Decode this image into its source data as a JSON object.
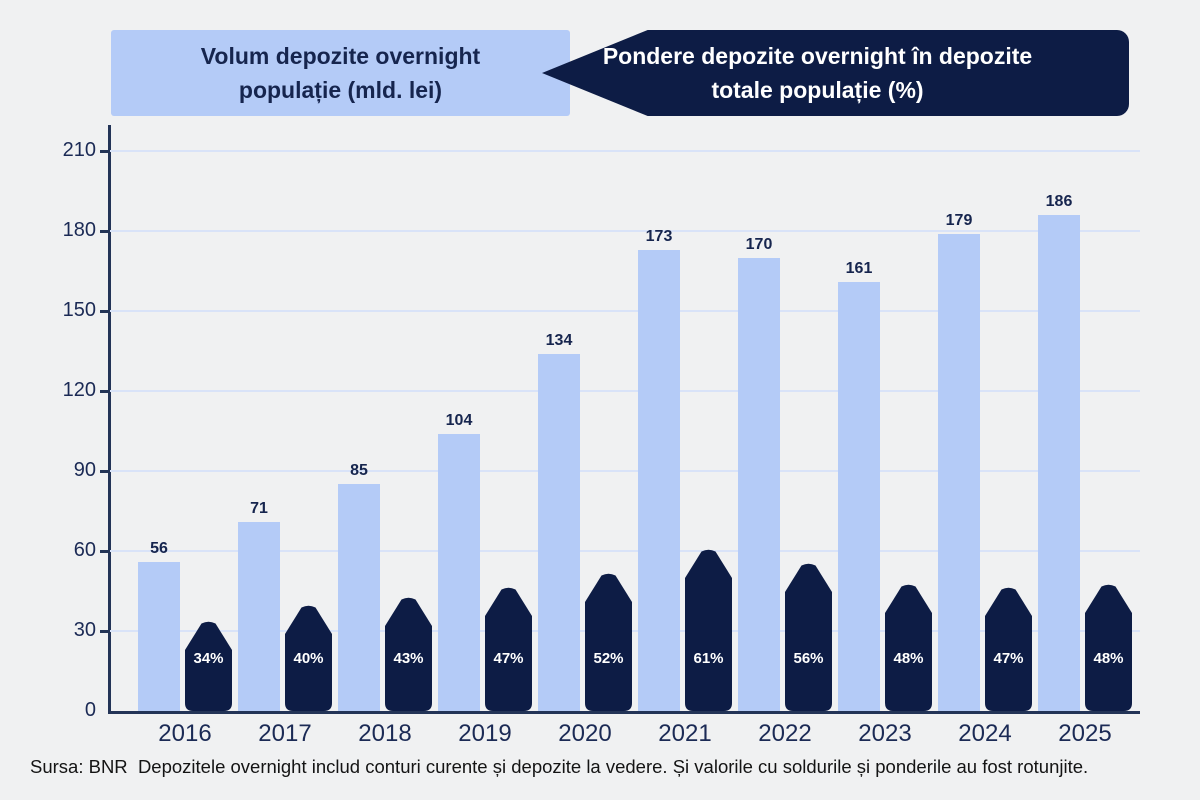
{
  "header": {
    "left": {
      "line1": "Volum depozite overnight",
      "line2": "populație (mld. lei)"
    },
    "right": {
      "line1": "Pondere depozite overnight în depozite",
      "line2": "totale populație (%)"
    }
  },
  "chart_data": {
    "type": "bar",
    "categories": [
      "2016",
      "2017",
      "2018",
      "2019",
      "2020",
      "2021",
      "2022",
      "2023",
      "2024",
      "2025"
    ],
    "series": [
      {
        "name": "Volum depozite overnight populație (mld. lei)",
        "values": [
          56,
          71,
          85,
          104,
          134,
          173,
          170,
          161,
          179,
          186
        ],
        "unit": "",
        "color": "#b4cbf7",
        "label_color": "#16254e"
      },
      {
        "name": "Pondere depozite overnight în depozite totale populație (%)",
        "values": [
          34,
          40,
          43,
          47,
          52,
          61,
          56,
          48,
          47,
          48
        ],
        "unit": "%",
        "color": "#0d1c45",
        "label_color": "#ffffff"
      }
    ],
    "title": "",
    "xlabel": "",
    "ylabel": "",
    "ylim": [
      0,
      210
    ],
    "yticks": [
      0,
      30,
      60,
      90,
      120,
      150,
      180,
      210
    ],
    "grid": true,
    "legend_position": "top-banners"
  },
  "colors": {
    "background": "#f0f1f2",
    "light_blue": "#b4cbf7",
    "navy": "#0d1c45",
    "axis": "#233457",
    "gridline": "#d9e3f8",
    "tick_text": "#1b2a55"
  },
  "footer": {
    "text": "Sursa: BNR  Depozitele overnight includ conturi curente și depozite la vedere. Și valorile cu soldurile și ponderile au fost rotunjite."
  }
}
